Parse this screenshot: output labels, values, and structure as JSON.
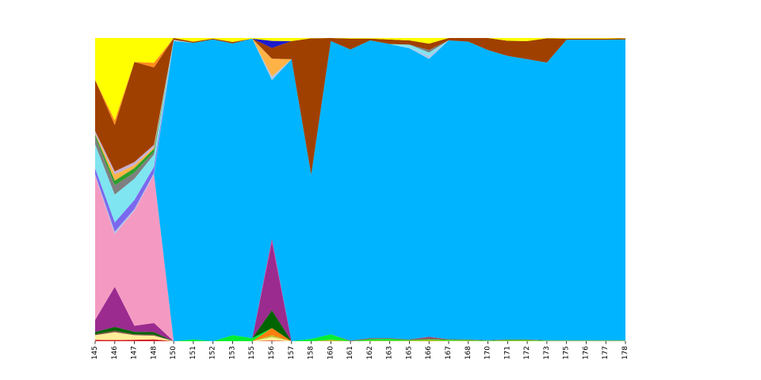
{
  "chart_data": {
    "type": "area",
    "stacked": true,
    "normalized": true,
    "ylim": [
      0,
      1
    ],
    "grid": false,
    "legend": "none",
    "title": "",
    "xlabel": "",
    "ylabel": "",
    "x": [
      "145",
      "146",
      "147",
      "148",
      "150",
      "151",
      "152",
      "153",
      "155",
      "156",
      "157",
      "158",
      "160",
      "161",
      "162",
      "163",
      "165",
      "166",
      "167",
      "168",
      "170",
      "171",
      "172",
      "173",
      "175",
      "176",
      "177",
      "178"
    ],
    "series": [
      {
        "color": "#d62728",
        "values": [
          0.005,
          0.004,
          0.005,
          0.006,
          0.0,
          0.0,
          0.0,
          0.0,
          0.0,
          0.002,
          0.0,
          0.0,
          0.0,
          0.0,
          0.0,
          0.0,
          0.0,
          0.0,
          0.0,
          0.0,
          0.0,
          0.0,
          0.0,
          0.0,
          0.0,
          0.0,
          0.0,
          0.0
        ]
      },
      {
        "color": "#ffee99",
        "values": [
          0.015,
          0.025,
          0.015,
          0.012,
          0.0,
          0.0,
          0.0,
          0.0,
          0.0,
          0.01,
          0.0,
          0.0,
          0.0,
          0.0,
          0.0,
          0.0,
          0.0,
          0.0,
          0.0,
          0.0,
          0.0,
          0.0,
          0.0,
          0.0,
          0.0,
          0.0,
          0.0,
          0.0
        ]
      },
      {
        "color": "#bcbd22",
        "values": [
          0.0,
          0.0,
          0.0,
          0.0,
          0.0,
          0.0,
          0.0,
          0.0,
          0.0,
          0.005,
          0.0,
          0.0,
          0.005,
          0.0,
          0.002,
          0.002,
          0.002,
          0.004,
          0.002,
          0.002,
          0.001,
          0.002,
          0.002,
          0.001,
          0.001,
          0.001,
          0.001,
          0.001
        ]
      },
      {
        "color": "#ff7f0e",
        "values": [
          0.0,
          0.0,
          0.0,
          0.0,
          0.0,
          0.0,
          0.0,
          0.0,
          0.0,
          0.02,
          0.0,
          0.0,
          0.0,
          0.0,
          0.0,
          0.0,
          0.0,
          0.0,
          0.0,
          0.0,
          0.0,
          0.0,
          0.0,
          0.0,
          0.0,
          0.0,
          0.0,
          0.0
        ]
      },
      {
        "color": "#00ee33",
        "values": [
          0.0,
          0.0,
          0.0,
          0.0,
          0.0,
          0.006,
          0.0,
          0.02,
          0.01,
          0.0,
          0.0,
          0.008,
          0.018,
          0.0,
          0.005,
          0.006,
          0.002,
          0.002,
          0.003,
          0.002,
          0.001,
          0.002,
          0.002,
          0.001,
          0.001,
          0.001,
          0.001,
          0.001
        ]
      },
      {
        "color": "#8c564b",
        "values": [
          0.003,
          0.005,
          0.003,
          0.003,
          0.0,
          0.0,
          0.0,
          0.0,
          0.0,
          0.0,
          0.0,
          0.0,
          0.0,
          0.002,
          0.003,
          0.002,
          0.002,
          0.006,
          0.002,
          0.002,
          0.001,
          0.002,
          0.002,
          0.001,
          0.001,
          0.001,
          0.001,
          0.001
        ]
      },
      {
        "color": "#006400",
        "values": [
          0.008,
          0.012,
          0.008,
          0.008,
          0.0,
          0.0,
          0.0,
          0.0,
          0.0,
          0.05,
          0.0,
          0.0,
          0.0,
          0.0,
          0.0,
          0.0,
          0.0,
          0.0,
          0.0,
          0.0,
          0.0,
          0.0,
          0.0,
          0.0,
          0.0,
          0.0,
          0.0,
          0.0
        ]
      },
      {
        "color": "#9b2b8f",
        "values": [
          0.04,
          0.13,
          0.02,
          0.03,
          0.0,
          0.0,
          0.0,
          0.0,
          0.0,
          0.19,
          0.0,
          0.0,
          0.0,
          0.0,
          0.0,
          0.0,
          0.0,
          0.002,
          0.0,
          0.0,
          0.0,
          0.0,
          0.0,
          0.0,
          0.0,
          0.0,
          0.0,
          0.0
        ]
      },
      {
        "color": "#e7298a",
        "values": [
          0.0,
          0.0,
          0.0,
          0.0,
          0.0,
          0.0,
          0.0,
          0.0,
          0.0,
          0.01,
          0.0,
          0.0,
          0.0,
          0.0,
          0.0,
          0.0,
          0.0,
          0.0,
          0.0,
          0.0,
          0.0,
          0.0,
          0.0,
          0.0,
          0.0,
          0.0,
          0.0,
          0.0
        ]
      },
      {
        "color": "#f49ac2",
        "values": [
          0.48,
          0.17,
          0.38,
          0.48,
          0.0,
          0.0,
          0.0,
          0.0,
          0.0,
          0.0,
          0.0,
          0.0,
          0.0,
          0.0,
          0.0,
          0.0,
          0.0,
          0.0,
          0.0,
          0.0,
          0.0,
          0.0,
          0.0,
          0.0,
          0.0,
          0.0,
          0.0,
          0.0
        ]
      },
      {
        "color": "#00b4ff",
        "values": [
          0.0,
          0.0,
          0.0,
          0.0,
          0.99,
          0.978,
          0.995,
          0.962,
          0.988,
          0.445,
          0.93,
          0.541,
          0.967,
          0.96,
          0.982,
          0.97,
          0.97,
          0.88,
          0.985,
          0.982,
          0.958,
          0.935,
          0.924,
          0.917,
          0.992,
          0.992,
          0.992,
          0.993
        ]
      },
      {
        "color": "#aec7e8",
        "values": [
          0.005,
          0.008,
          0.005,
          0.005,
          0.004,
          0.0,
          0.0,
          0.0,
          0.0,
          0.01,
          0.0,
          0.0,
          0.0,
          0.0,
          0.0,
          0.0,
          0.002,
          0.01,
          0.0,
          0.0,
          0.0,
          0.0,
          0.0,
          0.0,
          0.0,
          0.0,
          0.0,
          0.0
        ]
      },
      {
        "color": "#7b68ee",
        "values": [
          0.02,
          0.03,
          0.03,
          0.02,
          0.0,
          0.0,
          0.0,
          0.0,
          0.0,
          0.0,
          0.0,
          0.0,
          0.0,
          0.0,
          0.0,
          0.0,
          0.0,
          0.0,
          0.0,
          0.0,
          0.0,
          0.0,
          0.0,
          0.0,
          0.0,
          0.0,
          0.0,
          0.0
        ]
      },
      {
        "color": "#7fe5f0",
        "values": [
          0.08,
          0.09,
          0.07,
          0.04,
          0.0,
          0.0,
          0.0,
          0.0,
          0.0,
          0.0,
          0.0,
          0.0,
          0.0,
          0.0,
          0.0,
          0.0,
          0.01,
          0.01,
          0.0,
          0.0,
          0.0,
          0.0,
          0.0,
          0.0,
          0.0,
          0.0,
          0.0,
          0.0
        ]
      },
      {
        "color": "#7f7f7f",
        "values": [
          0.025,
          0.03,
          0.02,
          0.008,
          0.0,
          0.0,
          0.0,
          0.0,
          0.0,
          0.0,
          0.0,
          0.0,
          0.0,
          0.0,
          0.0,
          0.0,
          0.0,
          0.008,
          0.0,
          0.0,
          0.0,
          0.0,
          0.0,
          0.0,
          0.0,
          0.0,
          0.0,
          0.0
        ]
      },
      {
        "color": "#2ca02c",
        "values": [
          0.008,
          0.015,
          0.015,
          0.01,
          0.0,
          0.0,
          0.0,
          0.0,
          0.0,
          0.0,
          0.0,
          0.0,
          0.0,
          0.0,
          0.0,
          0.0,
          0.0,
          0.0,
          0.0,
          0.0,
          0.0,
          0.0,
          0.0,
          0.0,
          0.0,
          0.0,
          0.0,
          0.0
        ]
      },
      {
        "color": "#ffb347",
        "values": [
          0.003,
          0.02,
          0.01,
          0.005,
          0.0,
          0.0,
          0.0,
          0.0,
          0.0,
          0.05,
          0.0,
          0.0,
          0.0,
          0.0,
          0.0,
          0.0,
          0.0,
          0.0,
          0.0,
          0.0,
          0.0,
          0.0,
          0.0,
          0.0,
          0.0,
          0.0,
          0.0,
          0.0
        ]
      },
      {
        "color": "#c5b0d5",
        "values": [
          0.008,
          0.01,
          0.01,
          0.008,
          0.0,
          0.0,
          0.0,
          0.0,
          0.0,
          0.0,
          0.0,
          0.0,
          0.0,
          0.0,
          0.0,
          0.0,
          0.0,
          0.0,
          0.0,
          0.0,
          0.0,
          0.0,
          0.0,
          0.0,
          0.0,
          0.0,
          0.0,
          0.0
        ]
      },
      {
        "color": "#ff6600",
        "values": [
          0.0,
          0.0,
          0.0,
          0.0,
          0.0,
          0.0,
          0.0,
          0.0,
          0.0,
          0.0,
          0.0,
          0.0,
          0.0,
          0.0,
          0.0,
          0.0,
          0.0,
          0.0,
          0.0,
          0.0,
          0.0,
          0.0,
          0.0,
          0.0,
          0.0,
          0.0,
          0.0,
          0.0
        ]
      },
      {
        "color": "#a04000",
        "values": [
          0.17,
          0.15,
          0.33,
          0.25,
          0.006,
          0.004,
          0.003,
          0.005,
          0.0,
          0.03,
          0.06,
          0.45,
          0.01,
          0.036,
          0.006,
          0.015,
          0.014,
          0.02,
          0.008,
          0.012,
          0.04,
          0.05,
          0.06,
          0.08,
          0.004,
          0.004,
          0.004,
          0.004
        ]
      },
      {
        "color": "#1a1acc",
        "values": [
          0.0,
          0.0,
          0.0,
          0.0,
          0.0,
          0.0,
          0.0,
          0.0,
          0.0,
          0.02,
          0.0,
          0.0,
          0.0,
          0.0,
          0.0,
          0.0,
          0.0,
          0.0,
          0.0,
          0.0,
          0.0,
          0.0,
          0.0,
          0.0,
          0.0,
          0.0,
          0.0,
          0.0
        ]
      },
      {
        "color": "#ff8c1a",
        "values": [
          0.0,
          0.015,
          0.0,
          0.015,
          0.0,
          0.0,
          0.0,
          0.0,
          0.0,
          0.0,
          0.0,
          0.0,
          0.0,
          0.0,
          0.0,
          0.0,
          0.0,
          0.0,
          0.0,
          0.0,
          0.0,
          0.0,
          0.0,
          0.0,
          0.0,
          0.0,
          0.0,
          0.0
        ]
      },
      {
        "color": "#ffff00",
        "values": [
          0.14,
          0.266,
          0.079,
          0.08,
          0.0,
          0.012,
          0.002,
          0.013,
          0.002,
          0.008,
          0.01,
          0.001,
          0.0,
          0.002,
          0.002,
          0.005,
          0.008,
          0.018,
          0.0,
          0.0,
          0.0,
          0.009,
          0.01,
          0.001,
          0.002,
          0.002,
          0.002,
          0.001
        ]
      }
    ]
  }
}
